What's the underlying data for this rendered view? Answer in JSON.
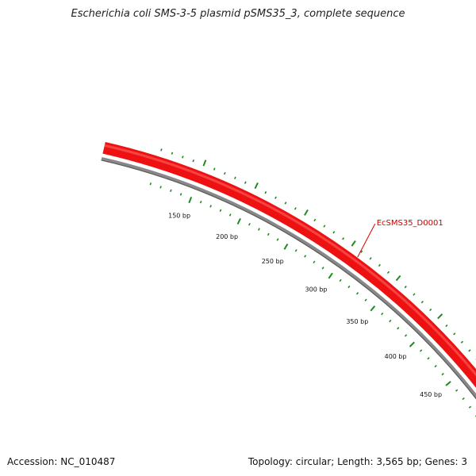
{
  "title": "Escherichia coli SMS-3-5 plasmid pSMS35_3, complete sequence",
  "footer": {
    "accession": "Accession: NC_010487",
    "summary": "Topology: circular; Length: 3,565 bp; Genes: 3"
  },
  "plasmid": {
    "topology": "circular",
    "length_bp": 3565,
    "visible_range_bp": [
      100,
      470
    ],
    "major_tick_interval_bp": 50,
    "minor_tick_interval_bp": 10
  },
  "tick_labels": [
    {
      "bp": 150,
      "text": "150 bp"
    },
    {
      "bp": 200,
      "text": "200 bp"
    },
    {
      "bp": 250,
      "text": "250 bp"
    },
    {
      "bp": 300,
      "text": "300 bp"
    },
    {
      "bp": 350,
      "text": "350 bp"
    },
    {
      "bp": 400,
      "text": "400 bp"
    },
    {
      "bp": 450,
      "text": "450 bp"
    }
  ],
  "genes": [
    {
      "name": "EcSMS35_D0001",
      "label_bp": 310
    }
  ],
  "colors": {
    "gene": "#ee1111",
    "gene_highlight": "#ff6b6b",
    "backbone": "#888888",
    "ticks": "#1f8a1f",
    "label_line": "#dd0000"
  }
}
